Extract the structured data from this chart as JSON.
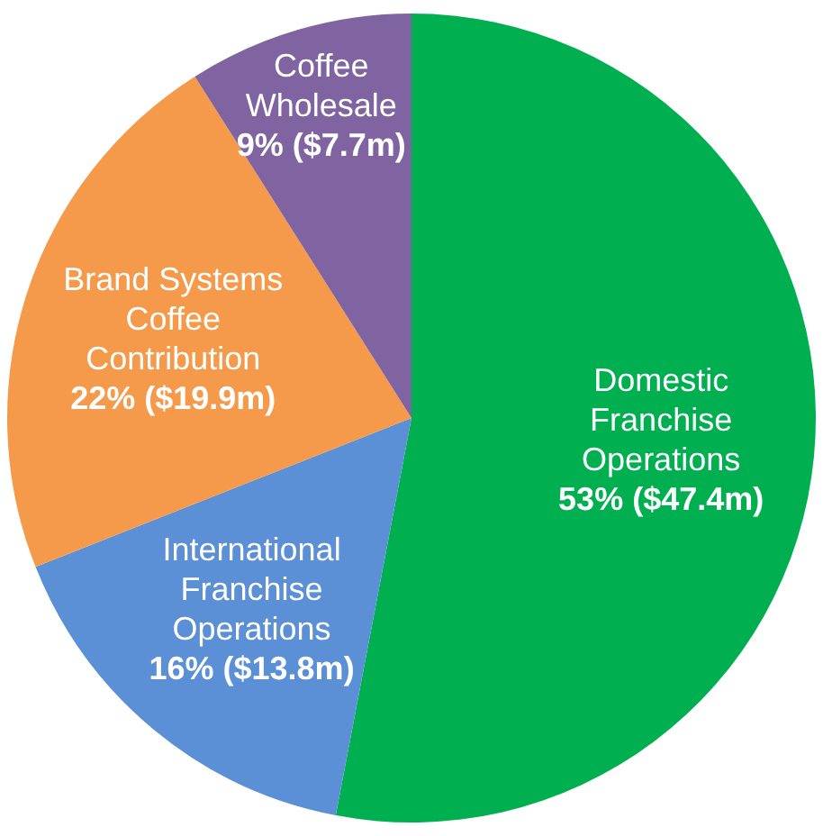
{
  "chart_data": {
    "type": "pie",
    "categories": [
      "Domestic Franchise Operations",
      "International Franchise Operations",
      "Brand Systems Coffee Contribution",
      "Coffee Wholesale"
    ],
    "values": [
      53,
      16,
      22,
      9
    ],
    "value_labels": [
      "53% ($47.4m)",
      "16% ($13.8m)",
      "22% ($19.9m)",
      "9% ($7.7m)"
    ],
    "colors": [
      "#00b050",
      "#5b8fd6",
      "#f5994a",
      "#8064a2"
    ],
    "legend": false
  }
}
